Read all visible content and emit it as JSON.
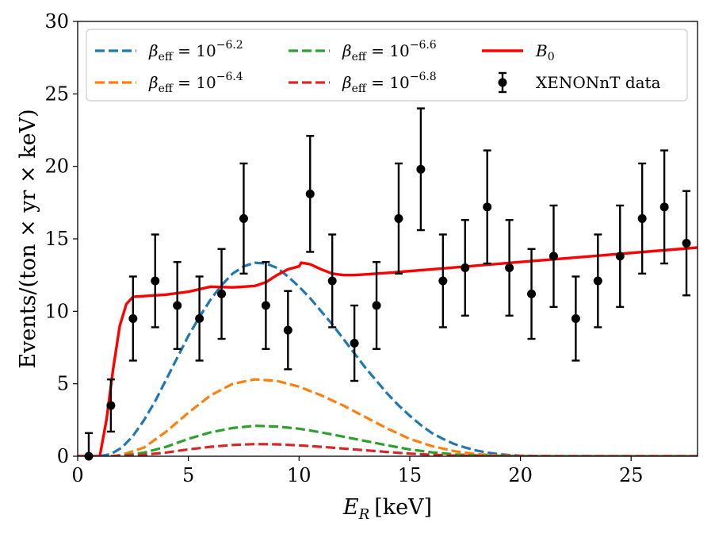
{
  "chart_data": {
    "type": "line",
    "title": "",
    "xlabel": "E_R [keV]",
    "xlabel_parts": {
      "var": "E",
      "sub": "R",
      "unit": "[keV]"
    },
    "ylabel": "Events/(ton × yr × keV)",
    "xlim": [
      0,
      28
    ],
    "ylim": [
      0,
      30
    ],
    "xticks": [
      0,
      5,
      10,
      15,
      20,
      25
    ],
    "yticks": [
      0,
      5,
      10,
      15,
      20,
      25,
      30
    ],
    "xtick_labels": [
      "0",
      "5",
      "10",
      "15",
      "20",
      "25"
    ],
    "ytick_labels": [
      "0",
      "5",
      "10",
      "15",
      "20",
      "25",
      "30"
    ],
    "legend_position": "top",
    "series": [
      {
        "name": "β_eff = 10^-6.2",
        "label_main": "β",
        "label_sub": "eff",
        "label_eq": " = 10",
        "label_sup": "−6.2",
        "color": "#1f77b4",
        "style": "dashed",
        "x": [
          1,
          1.5,
          2,
          2.5,
          3,
          3.5,
          4,
          4.5,
          5,
          5.5,
          6,
          6.5,
          7,
          7.5,
          8,
          8.5,
          9,
          9.5,
          10,
          10.5,
          11,
          11.5,
          12,
          12.5,
          13,
          13.5,
          14,
          14.5,
          15,
          15.5,
          16,
          16.5,
          17,
          17.5,
          18,
          18.5,
          19,
          19.5,
          20,
          20.5,
          21,
          22,
          24,
          26,
          28
        ],
        "y": [
          0,
          0.15,
          0.6,
          1.4,
          2.5,
          3.8,
          5.3,
          6.8,
          8.3,
          9.6,
          10.8,
          11.8,
          12.6,
          13.1,
          13.35,
          13.3,
          13.0,
          12.4,
          11.7,
          10.9,
          10.0,
          9.1,
          8.1,
          7.1,
          6.1,
          5.2,
          4.3,
          3.5,
          2.8,
          2.15,
          1.6,
          1.2,
          0.85,
          0.6,
          0.4,
          0.25,
          0.15,
          0.08,
          0.04,
          0.02,
          0.01,
          0,
          0,
          0,
          0
        ]
      },
      {
        "name": "β_eff = 10^-6.4",
        "label_main": "β",
        "label_sub": "eff",
        "label_eq": " = 10",
        "label_sup": "−6.4",
        "color": "#ff7f0e",
        "style": "dashed",
        "x": [
          1.5,
          2,
          3,
          4,
          5,
          6,
          7,
          8,
          9,
          10,
          11,
          12,
          13,
          14,
          15,
          16,
          17,
          18,
          19,
          20,
          21,
          22,
          24,
          26,
          28
        ],
        "y": [
          0,
          0.1,
          0.6,
          1.7,
          3.0,
          4.2,
          5.0,
          5.3,
          5.2,
          4.8,
          4.2,
          3.5,
          2.7,
          1.9,
          1.2,
          0.7,
          0.35,
          0.15,
          0.05,
          0.02,
          0,
          0,
          0,
          0,
          0
        ]
      },
      {
        "name": "β_eff = 10^-6.6",
        "label_main": "β",
        "label_sub": "eff",
        "label_eq": " = 10",
        "label_sup": "−6.6",
        "color": "#2ca02c",
        "style": "dashed",
        "x": [
          1.5,
          2,
          3,
          4,
          5,
          6,
          7,
          8,
          9,
          10,
          11,
          12,
          13,
          14,
          15,
          16,
          17,
          18,
          19,
          20,
          21,
          22,
          24,
          26,
          28
        ],
        "y": [
          0,
          0.05,
          0.25,
          0.65,
          1.2,
          1.65,
          1.95,
          2.1,
          2.05,
          1.9,
          1.65,
          1.35,
          1.05,
          0.75,
          0.47,
          0.27,
          0.13,
          0.06,
          0.02,
          0,
          0,
          0,
          0,
          0,
          0
        ]
      },
      {
        "name": "β_eff = 10^-6.8",
        "label_main": "β",
        "label_sub": "eff",
        "label_eq": " = 10",
        "label_sup": "−6.8",
        "color": "#d62728",
        "style": "dashed",
        "x": [
          1.5,
          2,
          3,
          4,
          5,
          6,
          7,
          8,
          9,
          10,
          11,
          12,
          13,
          14,
          15,
          16,
          17,
          18,
          19,
          20,
          21,
          22,
          24,
          26,
          28
        ],
        "y": [
          0,
          0.02,
          0.1,
          0.26,
          0.47,
          0.65,
          0.78,
          0.84,
          0.82,
          0.75,
          0.65,
          0.53,
          0.41,
          0.29,
          0.18,
          0.1,
          0.05,
          0.02,
          0,
          0,
          0,
          0,
          0,
          0,
          0
        ]
      },
      {
        "name": "B_0",
        "label_main": "B",
        "label_sub": "0",
        "label_eq": "",
        "label_sup": "",
        "color": "#ff0000",
        "style": "solid",
        "x": [
          0,
          1,
          1.3,
          1.6,
          1.9,
          2.2,
          2.5,
          3,
          4,
          5,
          6,
          7,
          8,
          8.5,
          9,
          9.5,
          10,
          10.1,
          10.5,
          11,
          11.5,
          12,
          12.5,
          13,
          14,
          16,
          18,
          20,
          22,
          24,
          26,
          28
        ],
        "y": [
          0,
          0,
          2.5,
          6.0,
          9.0,
          10.5,
          11.0,
          11.05,
          11.15,
          11.35,
          11.7,
          11.65,
          11.75,
          12.0,
          12.5,
          12.9,
          13.1,
          13.35,
          13.25,
          12.9,
          12.6,
          12.5,
          12.5,
          12.55,
          12.65,
          12.9,
          13.15,
          13.4,
          13.65,
          13.9,
          14.15,
          14.4
        ]
      }
    ],
    "errorbar_series": {
      "name": "XENONnT data",
      "color": "#000000",
      "x": [
        0.5,
        1.5,
        2.5,
        3.5,
        4.5,
        5.5,
        6.5,
        7.5,
        8.5,
        9.5,
        10.5,
        11.5,
        12.5,
        13.5,
        14.5,
        15.5,
        16.5,
        17.5,
        18.5,
        19.5,
        20.5,
        21.5,
        22.5,
        23.5,
        24.5,
        25.5,
        26.5,
        27.5
      ],
      "y": [
        0,
        3.5,
        9.5,
        12.1,
        10.4,
        9.5,
        11.2,
        16.4,
        10.4,
        8.7,
        18.1,
        12.1,
        7.8,
        10.4,
        16.4,
        19.8,
        12.1,
        13.0,
        17.2,
        13.0,
        11.2,
        13.8,
        9.5,
        12.1,
        13.8,
        16.4,
        17.2,
        14.7
      ],
      "yerr": [
        1.6,
        1.8,
        2.9,
        3.2,
        3.0,
        2.9,
        3.1,
        3.8,
        3.0,
        2.7,
        4.0,
        3.2,
        2.6,
        3.0,
        3.8,
        4.2,
        3.2,
        3.3,
        3.9,
        3.3,
        3.1,
        3.5,
        2.9,
        3.2,
        3.5,
        3.8,
        3.9,
        3.6
      ]
    }
  }
}
